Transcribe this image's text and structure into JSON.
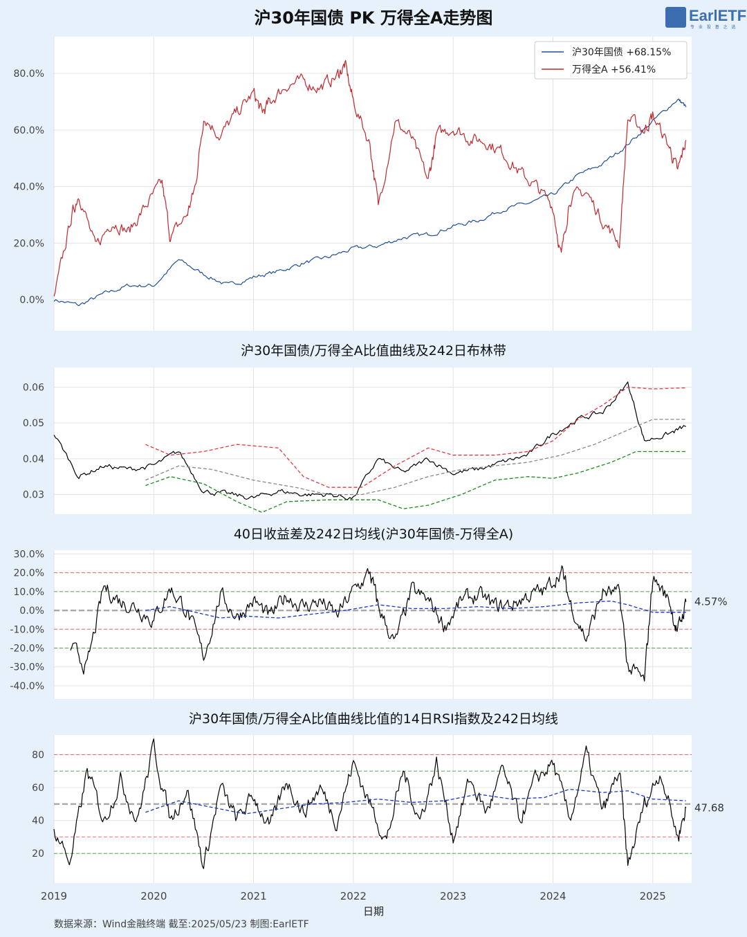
{
  "title": "沪30年国债 PK 万得全A走势图",
  "logo": {
    "name": "EarlETF",
    "tagline": "专 业 投 基 之 选"
  },
  "footer": "数据来源：Wind金融终端 截至:2025/05/23 制图:EarlETF",
  "colors": {
    "background": "#e6f1fb",
    "bond": "#1f4e9c",
    "equity": "#c0282d",
    "red_dash": "#e8383d",
    "green_dash": "#1a8a1a",
    "gray_dash": "#888888"
  },
  "chart_data": [
    {
      "type": "line",
      "title": "沪30年国债 PK 万得全A走势图",
      "xlabel": "",
      "ylabel": "",
      "ylim": [
        -11,
        93
      ],
      "y_ticks": [
        "0.0%",
        "20.0%",
        "40.0%",
        "60.0%",
        "80.0%"
      ],
      "legend_position": "top-right",
      "series": [
        {
          "name": "沪30年国债  +68.15%",
          "color": "#1f4e9c",
          "x": [
            "2019-01",
            "2019-04",
            "2019-07",
            "2019-10",
            "2020-01",
            "2020-04",
            "2020-07",
            "2020-10",
            "2021-01",
            "2021-04",
            "2021-07",
            "2021-10",
            "2022-01",
            "2022-04",
            "2022-07",
            "2022-10",
            "2023-01",
            "2023-04",
            "2023-07",
            "2023-10",
            "2024-01",
            "2024-04",
            "2024-07",
            "2024-10",
            "2025-01",
            "2025-04",
            "2025-05"
          ],
          "values": [
            0,
            -2,
            2,
            5,
            5,
            14,
            9,
            5,
            8,
            10,
            13,
            15,
            18,
            19,
            22,
            23,
            26,
            28,
            32,
            34,
            37,
            44,
            48,
            55,
            63,
            71,
            68.15
          ]
        },
        {
          "name": "万得全A  +56.41%",
          "color": "#c0282d",
          "x": [
            "2019-01",
            "2019-03",
            "2019-04",
            "2019-06",
            "2019-08",
            "2019-10",
            "2019-12",
            "2020-02",
            "2020-03",
            "2020-05",
            "2020-06",
            "2020-07",
            "2020-09",
            "2020-11",
            "2021-01",
            "2021-02",
            "2021-03",
            "2021-05",
            "2021-07",
            "2021-09",
            "2021-11",
            "2021-12",
            "2022-01",
            "2022-03",
            "2022-04",
            "2022-06",
            "2022-08",
            "2022-10",
            "2022-11",
            "2023-01",
            "2023-03",
            "2023-05",
            "2023-07",
            "2023-09",
            "2023-11",
            "2024-01",
            "2024-02",
            "2024-03",
            "2024-05",
            "2024-07",
            "2024-09",
            "2024-10",
            "2024-12",
            "2025-01",
            "2025-03",
            "2025-04",
            "2025-05"
          ],
          "values": [
            0,
            28,
            38,
            18,
            28,
            24,
            33,
            41,
            22,
            30,
            40,
            65,
            58,
            66,
            73,
            66,
            70,
            76,
            77,
            75,
            79,
            83,
            70,
            55,
            33,
            63,
            57,
            42,
            58,
            61,
            57,
            56,
            52,
            45,
            40,
            33,
            15,
            36,
            38,
            28,
            20,
            64,
            60,
            65,
            54,
            45,
            56.41
          ]
        }
      ]
    },
    {
      "type": "line",
      "title": "沪30年国债/万得全A比值曲线及242日布林带",
      "ylim": [
        0.0245,
        0.0655
      ],
      "y_ticks": [
        "0.03",
        "0.04",
        "0.05",
        "0.06"
      ],
      "series": [
        {
          "color": "#000000",
          "x": [
            "2019-01",
            "2019-04",
            "2019-07",
            "2019-10",
            "2020-01",
            "2020-04",
            "2020-07",
            "2020-10",
            "2021-01",
            "2021-04",
            "2021-07",
            "2021-10",
            "2022-01",
            "2022-04",
            "2022-07",
            "2022-10",
            "2023-01",
            "2023-04",
            "2023-07",
            "2023-10",
            "2024-01",
            "2024-04",
            "2024-07",
            "2024-10",
            "2024-12",
            "2025-03",
            "2025-05"
          ],
          "values": [
            0.047,
            0.035,
            0.038,
            0.037,
            0.038,
            0.042,
            0.031,
            0.03,
            0.029,
            0.031,
            0.03,
            0.03,
            0.029,
            0.04,
            0.036,
            0.04,
            0.036,
            0.037,
            0.039,
            0.041,
            0.047,
            0.051,
            0.053,
            0.061,
            0.045,
            0.047,
            0.049
          ]
        },
        {
          "color": "#e8383d",
          "x": [
            "2019-12",
            "2020-03",
            "2020-07",
            "2020-11",
            "2021-04",
            "2021-07",
            "2021-10",
            "2022-02",
            "2022-06",
            "2022-10",
            "2023-01",
            "2023-06",
            "2023-10",
            "2024-01",
            "2024-04",
            "2024-07",
            "2024-10",
            "2025-01",
            "2025-05"
          ],
          "values": [
            0.044,
            0.041,
            0.042,
            0.044,
            0.043,
            0.035,
            0.032,
            0.032,
            0.038,
            0.043,
            0.041,
            0.041,
            0.042,
            0.045,
            0.051,
            0.055,
            0.06,
            0.0595,
            0.0598
          ]
        },
        {
          "color": "#888888",
          "x": [
            "2019-12",
            "2020-04",
            "2020-08",
            "2021-01",
            "2021-06",
            "2021-10",
            "2022-02",
            "2022-06",
            "2022-10",
            "2023-02",
            "2023-06",
            "2023-10",
            "2024-02",
            "2024-06",
            "2024-10",
            "2025-01",
            "2025-05"
          ],
          "values": [
            0.034,
            0.038,
            0.037,
            0.034,
            0.032,
            0.03,
            0.03,
            0.032,
            0.035,
            0.037,
            0.038,
            0.039,
            0.041,
            0.044,
            0.048,
            0.051,
            0.051
          ]
        },
        {
          "color": "#1a8a1a",
          "x": [
            "2019-12",
            "2020-03",
            "2020-07",
            "2020-11",
            "2021-02",
            "2021-05",
            "2021-10",
            "2022-01",
            "2022-04",
            "2022-07",
            "2022-10",
            "2023-02",
            "2023-06",
            "2023-10",
            "2024-01",
            "2024-04",
            "2024-08",
            "2024-11",
            "2025-05"
          ],
          "values": [
            0.0325,
            0.035,
            0.033,
            0.028,
            0.025,
            0.028,
            0.0285,
            0.0285,
            0.0285,
            0.026,
            0.027,
            0.03,
            0.034,
            0.035,
            0.0345,
            0.036,
            0.039,
            0.042,
            0.042
          ]
        }
      ]
    },
    {
      "type": "line",
      "title": "40日收益差及242日均线(沪30年国债-万得全A)",
      "ylim": [
        -0.47,
        0.32
      ],
      "y_ticks": [
        "-40.0%",
        "-30.0%",
        "-20.0%",
        "-10.0%",
        "0.0%",
        "10.0%",
        "20.0%",
        "30.0%"
      ],
      "reference_lines": {
        "red": [
          0.2,
          -0.1
        ],
        "green": [
          0.1,
          -0.2
        ],
        "gray": [
          0
        ]
      },
      "end_label": "4.57%",
      "series": [
        {
          "color": "#000000",
          "x": [
            "2019-03",
            "2019-05",
            "2019-07",
            "2019-09",
            "2019-11",
            "2020-01",
            "2020-03",
            "2020-05",
            "2020-07",
            "2020-09",
            "2020-11",
            "2021-01",
            "2021-03",
            "2021-05",
            "2021-07",
            "2021-09",
            "2021-11",
            "2022-01",
            "2022-03",
            "2022-04",
            "2022-06",
            "2022-08",
            "2022-10",
            "2022-12",
            "2023-02",
            "2023-04",
            "2023-06",
            "2023-08",
            "2023-10",
            "2023-12",
            "2024-02",
            "2024-03",
            "2024-05",
            "2024-07",
            "2024-09",
            "2024-10",
            "2024-12",
            "2025-01",
            "2025-03",
            "2025-04",
            "2025-05"
          ],
          "values": [
            -0.2,
            -0.3,
            0.12,
            0.05,
            0.02,
            -0.05,
            0.12,
            0.0,
            -0.25,
            0.08,
            -0.03,
            0.05,
            -0.04,
            0.08,
            0.02,
            0.05,
            -0.03,
            0.1,
            0.2,
            0.02,
            -0.18,
            0.1,
            0.05,
            -0.08,
            0.05,
            0.08,
            0.02,
            0.03,
            0.08,
            0.1,
            0.22,
            0.05,
            -0.15,
            0.1,
            0.08,
            -0.3,
            -0.38,
            0.18,
            0.05,
            -0.12,
            0.0457
          ]
        },
        {
          "color": "#1a36cc",
          "x": [
            "2019-12",
            "2020-03",
            "2020-06",
            "2020-09",
            "2020-12",
            "2021-04",
            "2021-08",
            "2021-12",
            "2022-04",
            "2022-08",
            "2022-12",
            "2023-04",
            "2023-08",
            "2023-12",
            "2024-04",
            "2024-08",
            "2024-10",
            "2025-01",
            "2025-05"
          ],
          "values": [
            0.0,
            0.02,
            -0.01,
            -0.04,
            -0.03,
            -0.04,
            -0.02,
            0.0,
            0.03,
            0.01,
            0.01,
            0.02,
            0.01,
            0.02,
            0.04,
            0.05,
            0.03,
            -0.01,
            -0.01
          ]
        }
      ]
    },
    {
      "type": "line",
      "title": "沪30年国债/万得全A比值曲线比值的14日RSI指数及242日均线",
      "xlabel": "日期",
      "ylim": [
        2,
        92
      ],
      "y_ticks": [
        "20",
        "40",
        "60",
        "80"
      ],
      "x_ticks": [
        "2019",
        "2020",
        "2021",
        "2022",
        "2023",
        "2024",
        "2025"
      ],
      "reference_lines": {
        "red": [
          80,
          30
        ],
        "green": [
          70,
          20
        ],
        "gray": [
          50
        ]
      },
      "end_label": "47.68",
      "series": [
        {
          "color": "#000000",
          "x": [
            "2019-01",
            "2019-03",
            "2019-05",
            "2019-07",
            "2019-09",
            "2019-11",
            "2020-01",
            "2020-03",
            "2020-05",
            "2020-07",
            "2020-09",
            "2020-11",
            "2021-01",
            "2021-03",
            "2021-05",
            "2021-07",
            "2021-09",
            "2021-11",
            "2022-01",
            "2022-03",
            "2022-05",
            "2022-07",
            "2022-09",
            "2022-11",
            "2023-01",
            "2023-03",
            "2023-05",
            "2023-07",
            "2023-09",
            "2023-11",
            "2024-01",
            "2024-03",
            "2024-05",
            "2024-07",
            "2024-09",
            "2024-10",
            "2024-12",
            "2025-02",
            "2025-04",
            "2025-05"
          ],
          "values": [
            35,
            15,
            70,
            40,
            65,
            40,
            85,
            40,
            60,
            12,
            60,
            40,
            55,
            35,
            65,
            45,
            60,
            40,
            75,
            50,
            28,
            70,
            40,
            75,
            30,
            65,
            45,
            70,
            40,
            65,
            75,
            40,
            80,
            45,
            70,
            12,
            50,
            70,
            30,
            47.68
          ]
        },
        {
          "color": "#1a36cc",
          "x": [
            "2019-12",
            "2020-04",
            "2020-08",
            "2020-12",
            "2021-04",
            "2021-08",
            "2021-12",
            "2022-04",
            "2022-08",
            "2022-12",
            "2023-04",
            "2023-08",
            "2023-12",
            "2024-03",
            "2024-07",
            "2024-10",
            "2025-01",
            "2025-05"
          ],
          "values": [
            45,
            52,
            48,
            44,
            47,
            50,
            51,
            53,
            51,
            52,
            56,
            53,
            54,
            59,
            57,
            58,
            53,
            52
          ]
        }
      ]
    }
  ]
}
